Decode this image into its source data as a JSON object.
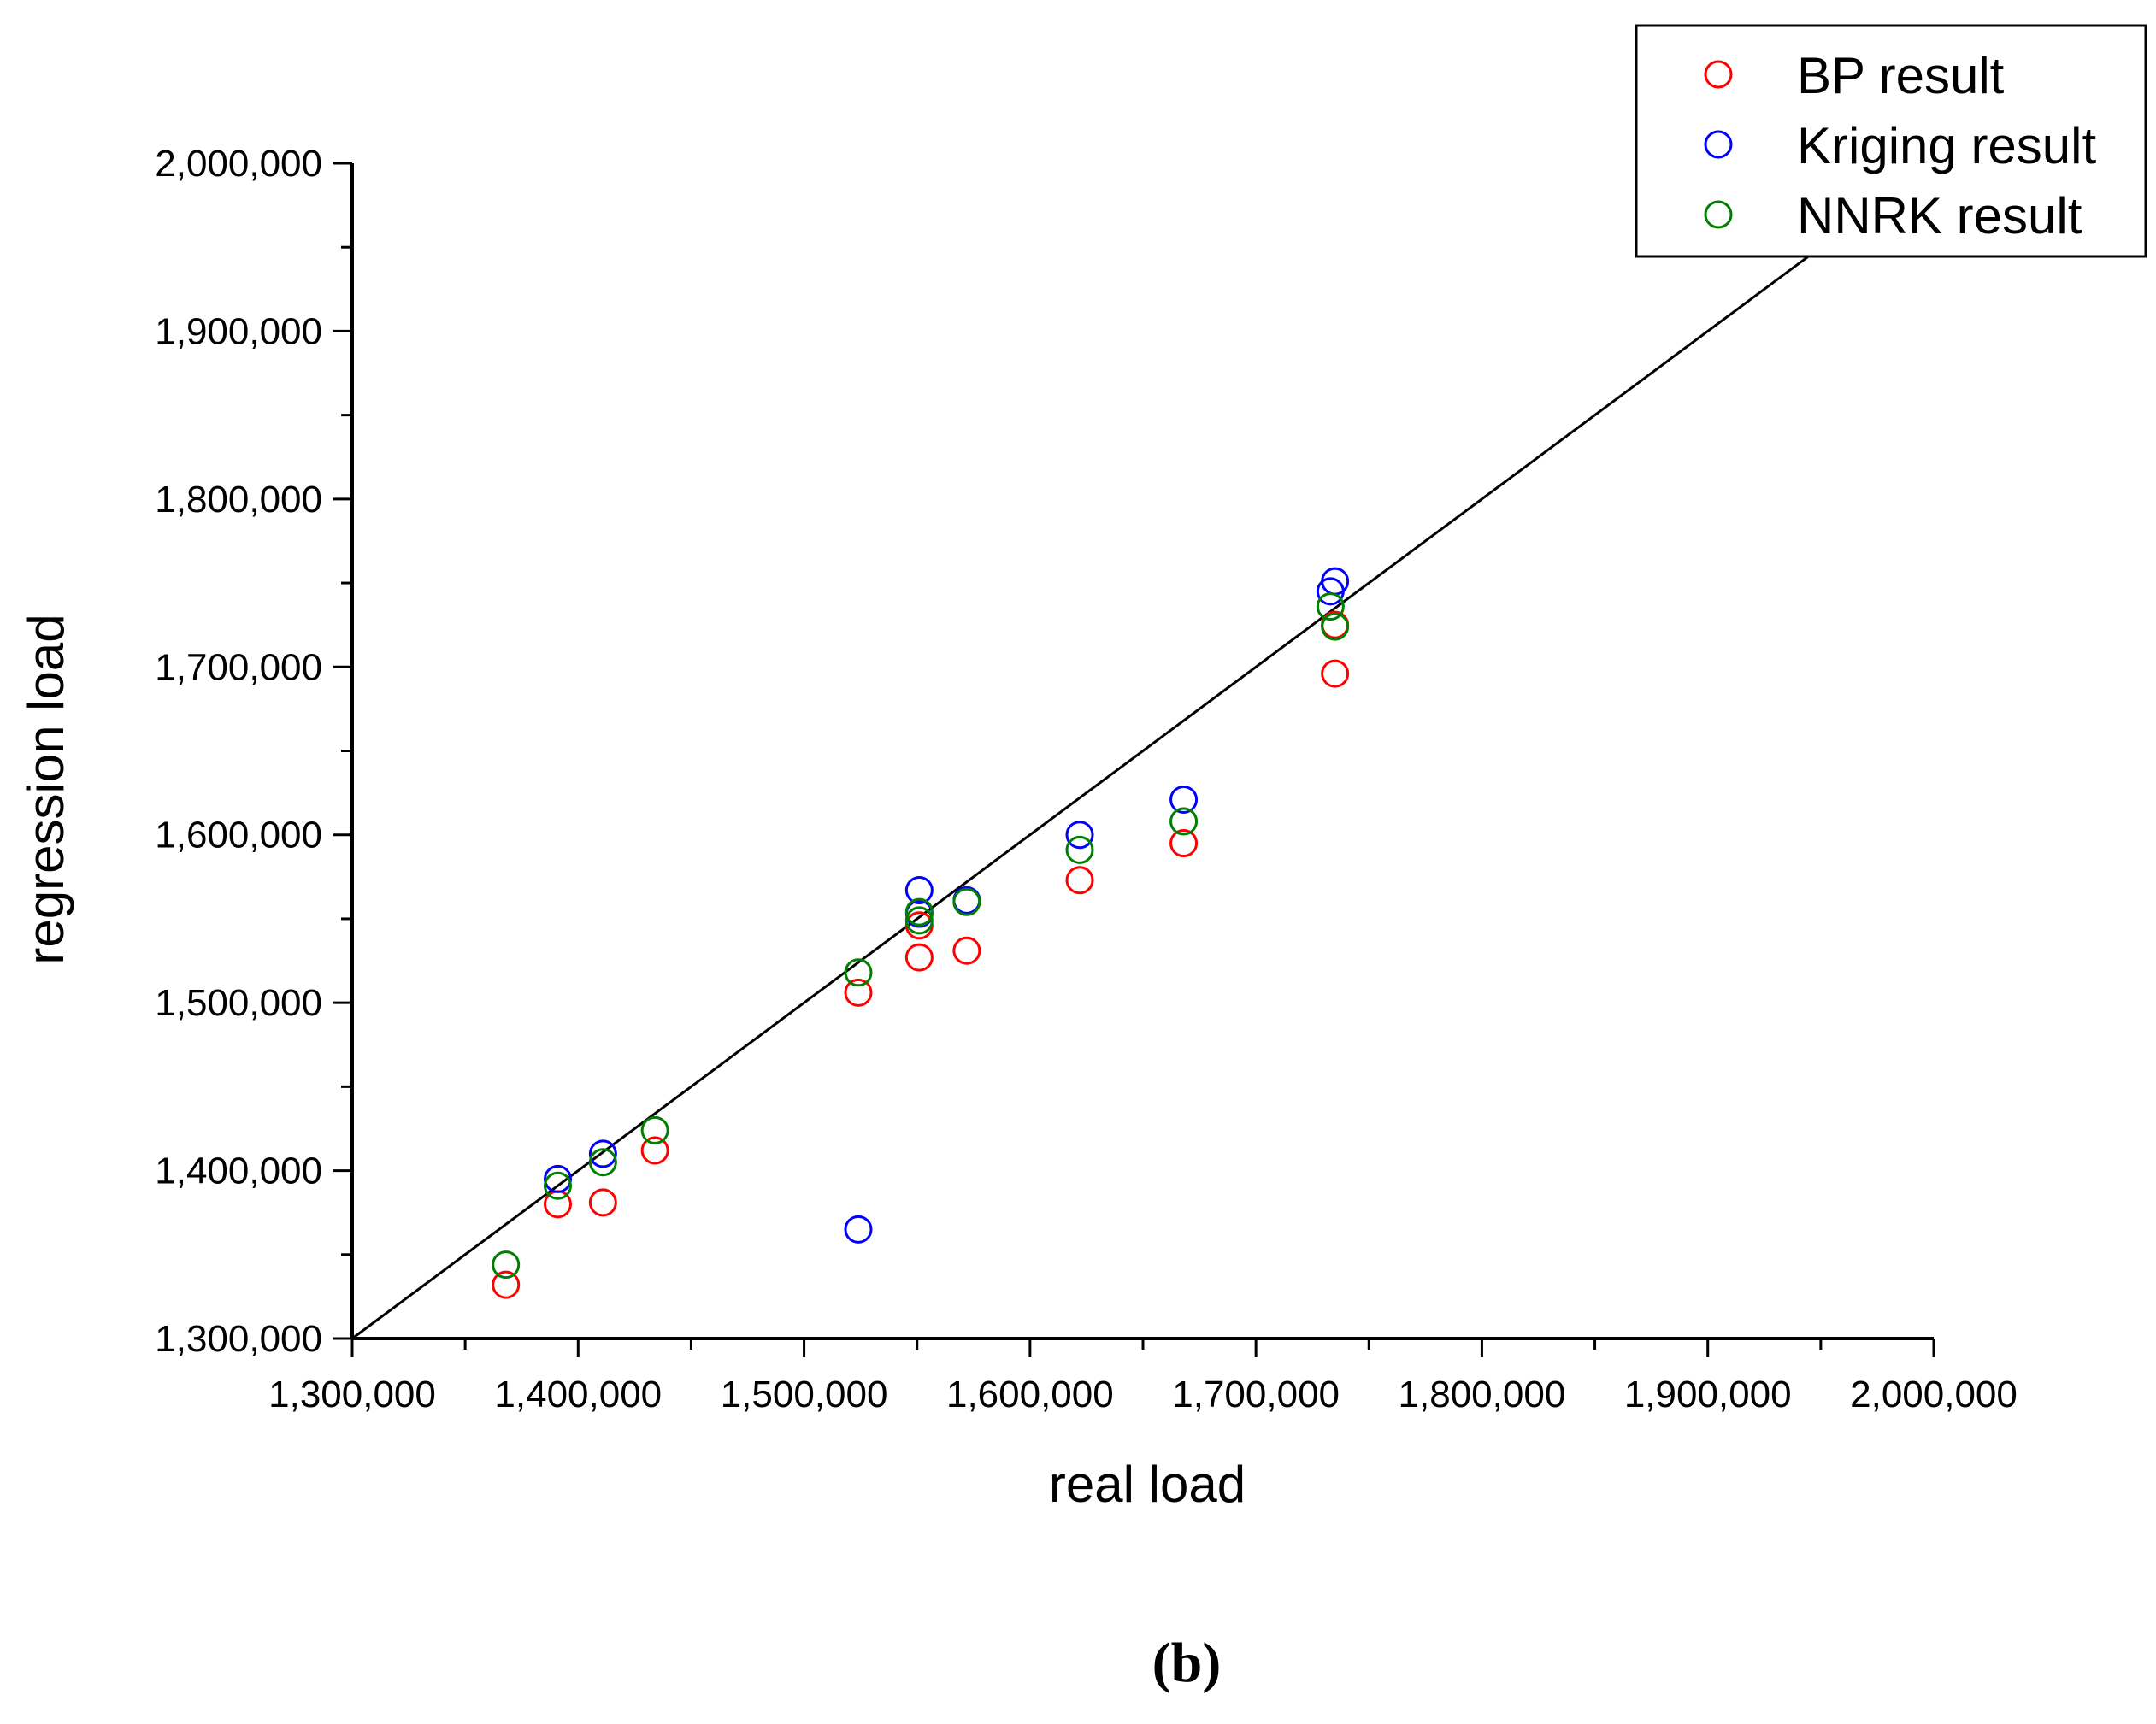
{
  "chart_data": {
    "type": "scatter",
    "xlabel": "real load",
    "ylabel": "regression load",
    "xlim": [
      1300000,
      2000000
    ],
    "ylim": [
      1300000,
      2000000
    ],
    "xticks": [
      1300000,
      1400000,
      1500000,
      1600000,
      1700000,
      1800000,
      1900000,
      2000000
    ],
    "yticks": [
      1300000,
      1400000,
      1500000,
      1600000,
      1700000,
      1800000,
      1900000,
      2000000
    ],
    "tick_labels": [
      "1,300,000",
      "1,400,000",
      "1,500,000",
      "1,600,000",
      "1,700,000",
      "1,800,000",
      "1,900,000",
      "2,000,000"
    ],
    "grid": false,
    "legend_position": "top-right",
    "reference_line": {
      "from": [
        1300000,
        1300000
      ],
      "to": [
        2000000,
        2000000
      ]
    },
    "series": [
      {
        "name": "BP result",
        "color": "#ff0000",
        "points": [
          [
            1368000,
            1332000
          ],
          [
            1391000,
            1380000
          ],
          [
            1411000,
            1381000
          ],
          [
            1434000,
            1412000
          ],
          [
            1524000,
            1506000
          ],
          [
            1551000,
            1527000
          ],
          [
            1551000,
            1546000
          ],
          [
            1572000,
            1531000
          ],
          [
            1622000,
            1573000
          ],
          [
            1668000,
            1595000
          ],
          [
            1735000,
            1696000
          ],
          [
            1735000,
            1725000
          ]
        ]
      },
      {
        "name": "Kriging result",
        "color": "#0000ff",
        "points": [
          [
            1391000,
            1395000
          ],
          [
            1411000,
            1410000
          ],
          [
            1524000,
            1365000
          ],
          [
            1551000,
            1567000
          ],
          [
            1551000,
            1553000
          ],
          [
            1572000,
            1561000
          ],
          [
            1622000,
            1600000
          ],
          [
            1668000,
            1621000
          ],
          [
            1735000,
            1751000
          ],
          [
            1733000,
            1745000
          ]
        ]
      },
      {
        "name": "NNRK result",
        "color": "#008000",
        "points": [
          [
            1368000,
            1344000
          ],
          [
            1391000,
            1391000
          ],
          [
            1411000,
            1405000
          ],
          [
            1434000,
            1424000
          ],
          [
            1524000,
            1518000
          ],
          [
            1551000,
            1549000
          ],
          [
            1551000,
            1554000
          ],
          [
            1572000,
            1560000
          ],
          [
            1622000,
            1591000
          ],
          [
            1668000,
            1608000
          ],
          [
            1735000,
            1724000
          ],
          [
            1733000,
            1736000
          ]
        ]
      }
    ]
  },
  "panel_label": "(b)"
}
